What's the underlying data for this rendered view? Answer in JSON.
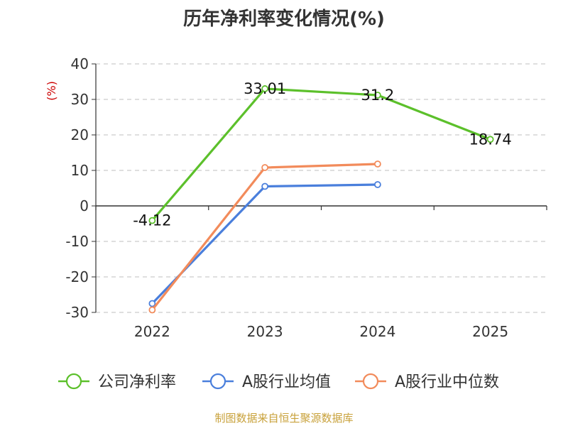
{
  "title": "历年净利率变化情况(%)",
  "source": "制图数据来自恒生聚源数据库",
  "colors": {
    "company": "#5cc02b",
    "industry_avg": "#4a7fdc",
    "industry_median": "#f28b5b",
    "ylabel": "#cc0000",
    "grid": "#cccccc",
    "axis": "#333333"
  },
  "chart_data": {
    "type": "line",
    "title": "历年净利率变化情况(%)",
    "ylabel": "(%)",
    "xlabel": "",
    "categories": [
      "2022",
      "2023",
      "2024",
      "2025"
    ],
    "ylim": [
      -30,
      40
    ],
    "yticks": [
      40,
      30,
      20,
      10,
      0,
      -10,
      -20,
      -30
    ],
    "grid": true,
    "legend_position": "bottom",
    "series": [
      {
        "name": "公司净利率",
        "values": [
          -4.12,
          33.01,
          31.2,
          18.74
        ],
        "labels": [
          "-4.12",
          "33.01",
          "31.2",
          "18.74"
        ],
        "color": "#5cc02b"
      },
      {
        "name": "A股行业均值",
        "values": [
          -27.5,
          5.5,
          6.0,
          null
        ],
        "color": "#4a7fdc"
      },
      {
        "name": "A股行业中位数",
        "values": [
          -29.3,
          10.8,
          11.8,
          null
        ],
        "color": "#f28b5b"
      }
    ]
  }
}
